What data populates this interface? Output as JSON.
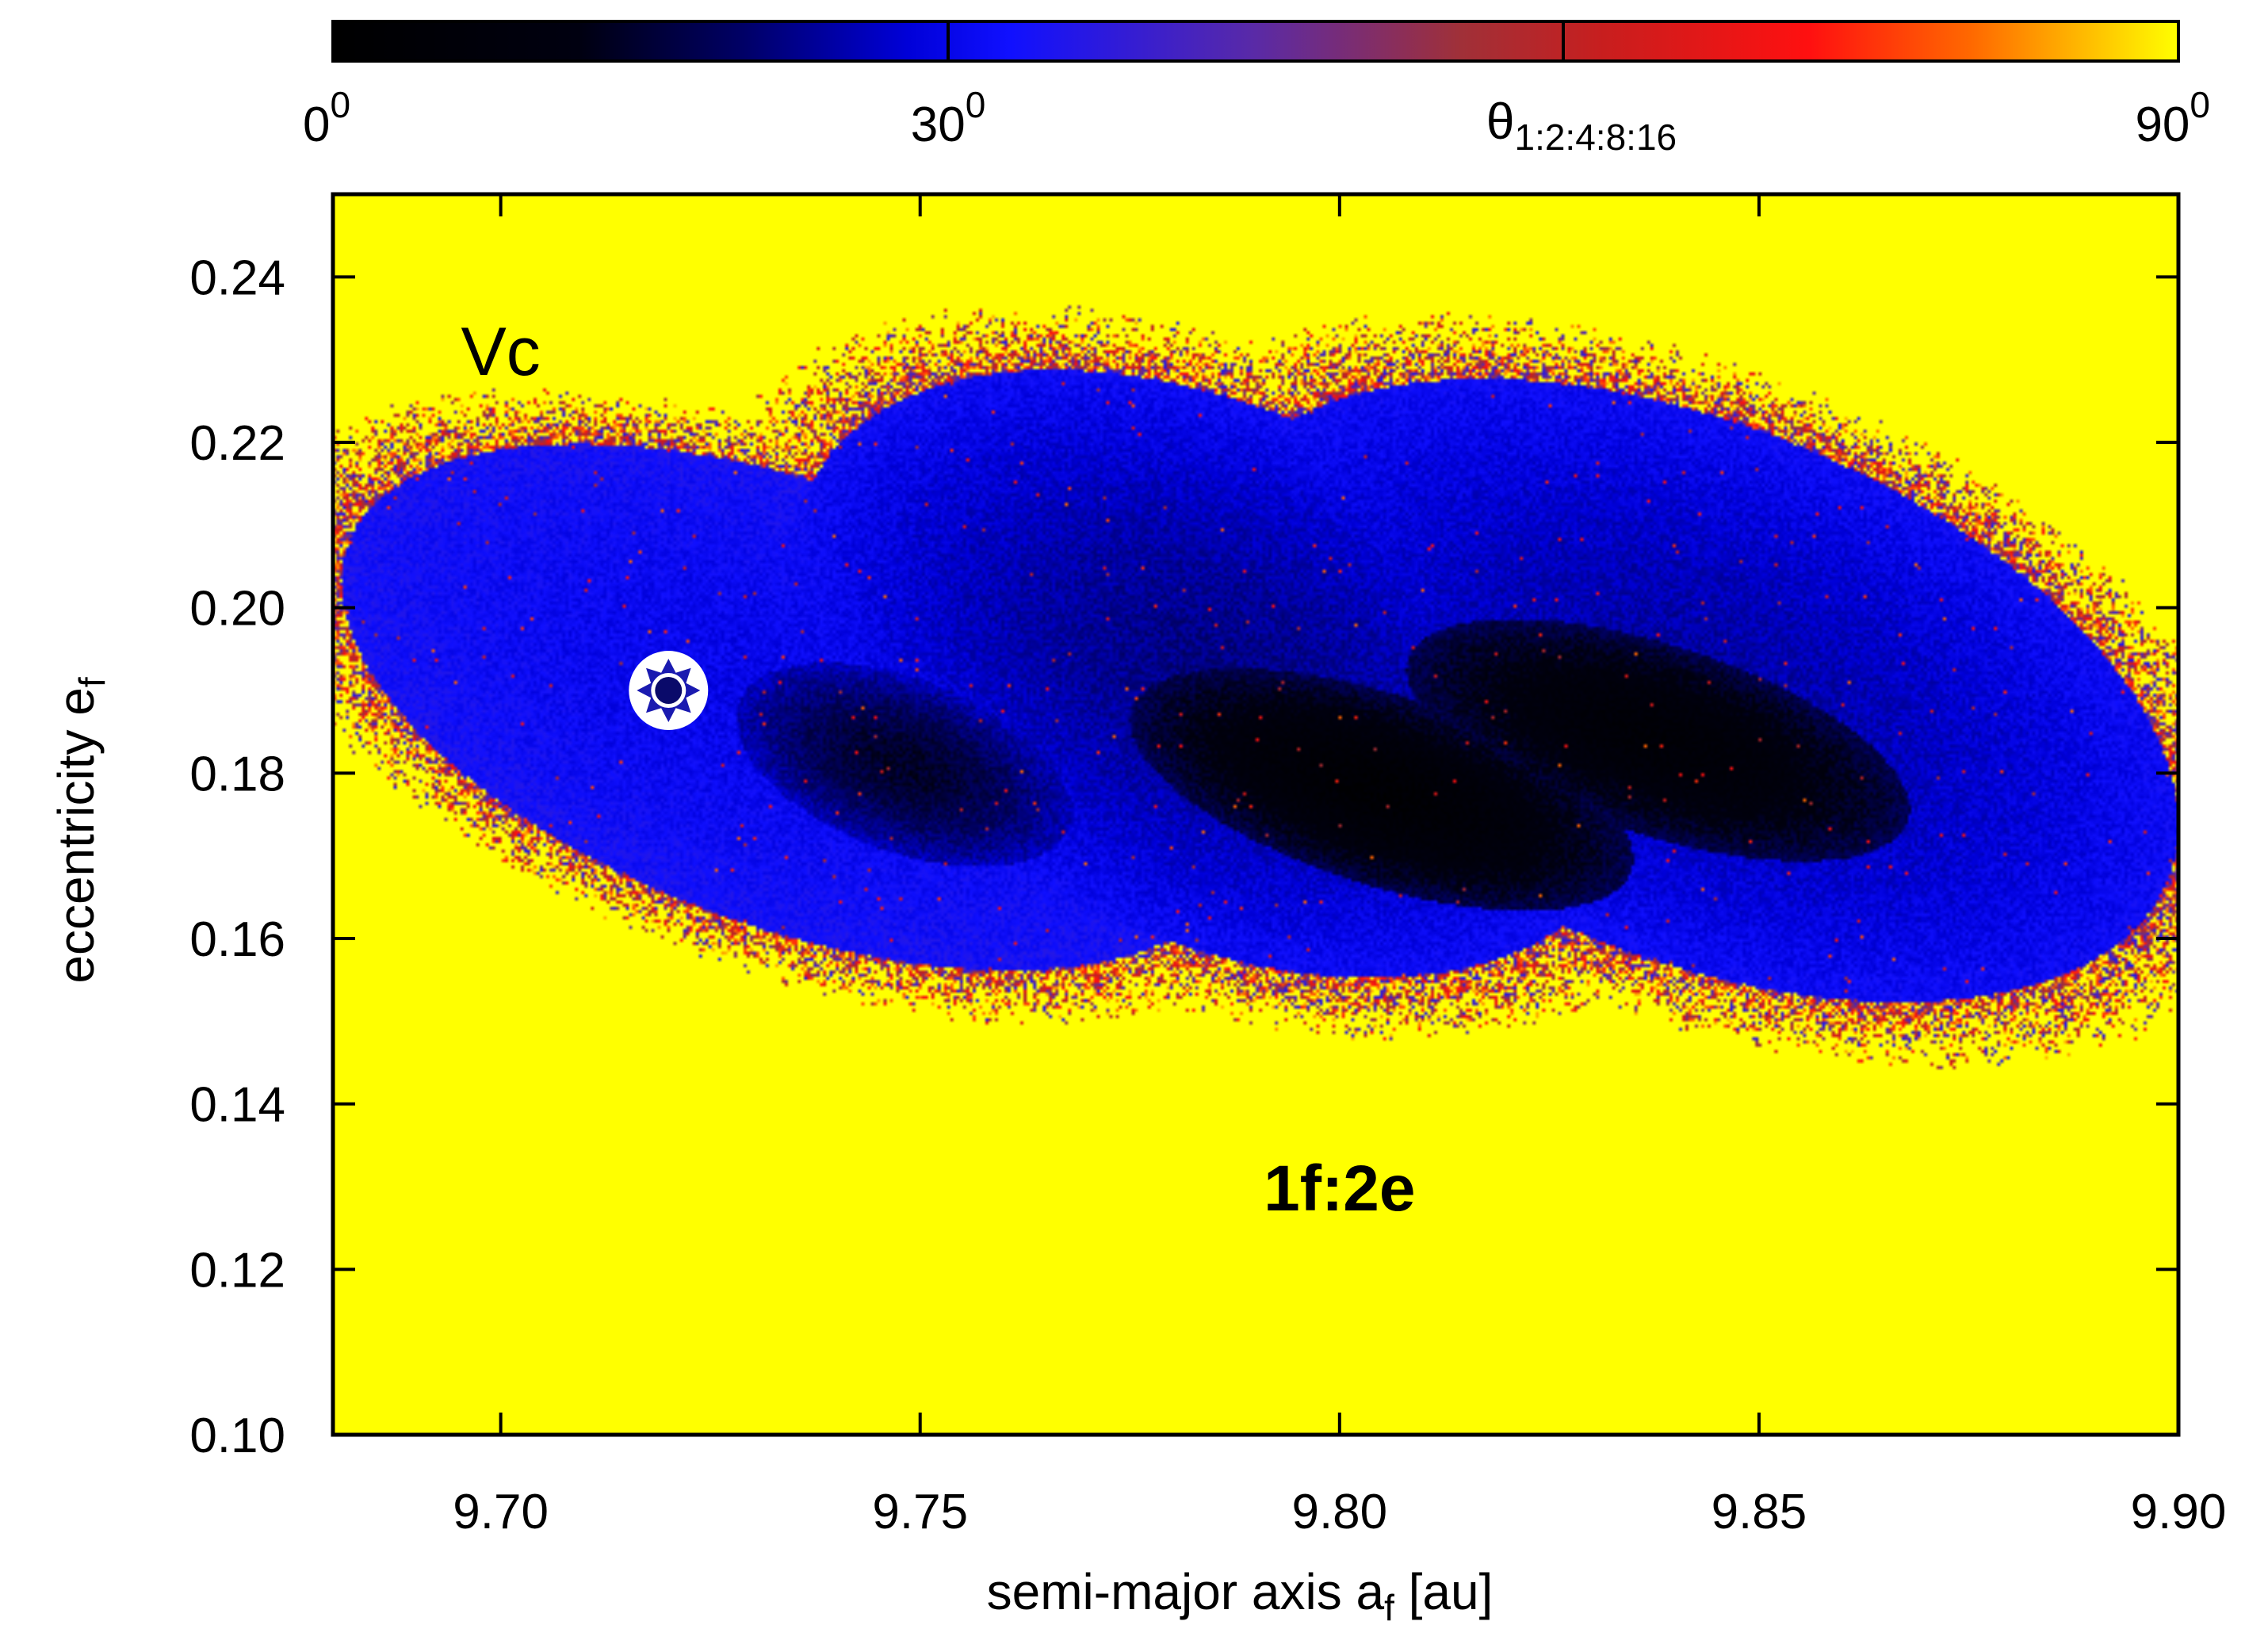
{
  "chart_data": {
    "type": "heatmap",
    "title": "",
    "xlabel_main": "semi-major axis a",
    "xlabel_sub": "f",
    "xlabel_unit": " [au]",
    "ylabel_main": "eccentricity e",
    "ylabel_sub": "f",
    "xlim": [
      9.68,
      9.9
    ],
    "ylim": [
      0.1,
      0.25
    ],
    "x_ticks": [
      9.7,
      9.75,
      9.8,
      9.85,
      9.9
    ],
    "x_tick_labels": [
      "9.70",
      "9.75",
      "9.80",
      "9.85",
      "9.90"
    ],
    "y_ticks": [
      0.1,
      0.12,
      0.14,
      0.16,
      0.18,
      0.2,
      0.22,
      0.24
    ],
    "y_tick_labels": [
      "0.10",
      "0.12",
      "0.14",
      "0.16",
      "0.18",
      "0.20",
      "0.22",
      "0.24"
    ],
    "colorbar": {
      "label_main": "θ",
      "label_sub": "1:2:4:8:16",
      "range": [
        0,
        90
      ],
      "ticks": [
        0,
        30,
        60,
        90
      ],
      "tick_labels": [
        {
          "base": "0",
          "sup": "0"
        },
        {
          "base": "30",
          "sup": "0"
        },
        {
          "base": "90",
          "sup": "0"
        }
      ],
      "tick_label_values": [
        0,
        30,
        90
      ],
      "stops": [
        {
          "v": 0,
          "color": "#000000"
        },
        {
          "v": 12,
          "color": "#000010"
        },
        {
          "v": 20,
          "color": "#000066"
        },
        {
          "v": 28,
          "color": "#0000d8"
        },
        {
          "v": 33,
          "color": "#1010ff"
        },
        {
          "v": 45,
          "color": "#5a2aa6"
        },
        {
          "v": 55,
          "color": "#a03038"
        },
        {
          "v": 62,
          "color": "#c81e1e"
        },
        {
          "v": 72,
          "color": "#ff1010"
        },
        {
          "v": 80,
          "color": "#ff6a00"
        },
        {
          "v": 90,
          "color": "#ffff00"
        }
      ]
    },
    "background_value": 90,
    "regions": [
      {
        "name": "left-lobe",
        "cx": 9.735,
        "cy": 0.188,
        "rx": 0.054,
        "ry": 0.028,
        "core_value": 30,
        "edge_value": 34
      },
      {
        "name": "left-core",
        "cx": 9.748,
        "cy": 0.181,
        "rx": 0.02,
        "ry": 0.011,
        "core_value": 14,
        "edge_value": 26
      },
      {
        "name": "middle-lobe",
        "cx": 9.785,
        "cy": 0.192,
        "rx": 0.05,
        "ry": 0.034,
        "core_value": 22,
        "edge_value": 32
      },
      {
        "name": "middle-core",
        "cx": 9.805,
        "cy": 0.178,
        "rx": 0.03,
        "ry": 0.012,
        "core_value": 3,
        "edge_value": 18
      },
      {
        "name": "right-lobe",
        "cx": 9.842,
        "cy": 0.19,
        "rx": 0.058,
        "ry": 0.034,
        "core_value": 24,
        "edge_value": 32
      },
      {
        "name": "right-core",
        "cx": 9.838,
        "cy": 0.184,
        "rx": 0.03,
        "ry": 0.012,
        "core_value": 5,
        "edge_value": 18
      }
    ],
    "marker": {
      "x": 9.72,
      "y": 0.19,
      "label": "star"
    },
    "annotations": [
      {
        "text": "Vc",
        "x": 9.7,
        "y": 0.231
      },
      {
        "text": "1f:2e",
        "x": 9.8,
        "y": 0.13
      }
    ]
  },
  "colors": {
    "frame": "#000000",
    "marker_fill": "#ffffff",
    "marker_core": "#0a0a6a"
  }
}
